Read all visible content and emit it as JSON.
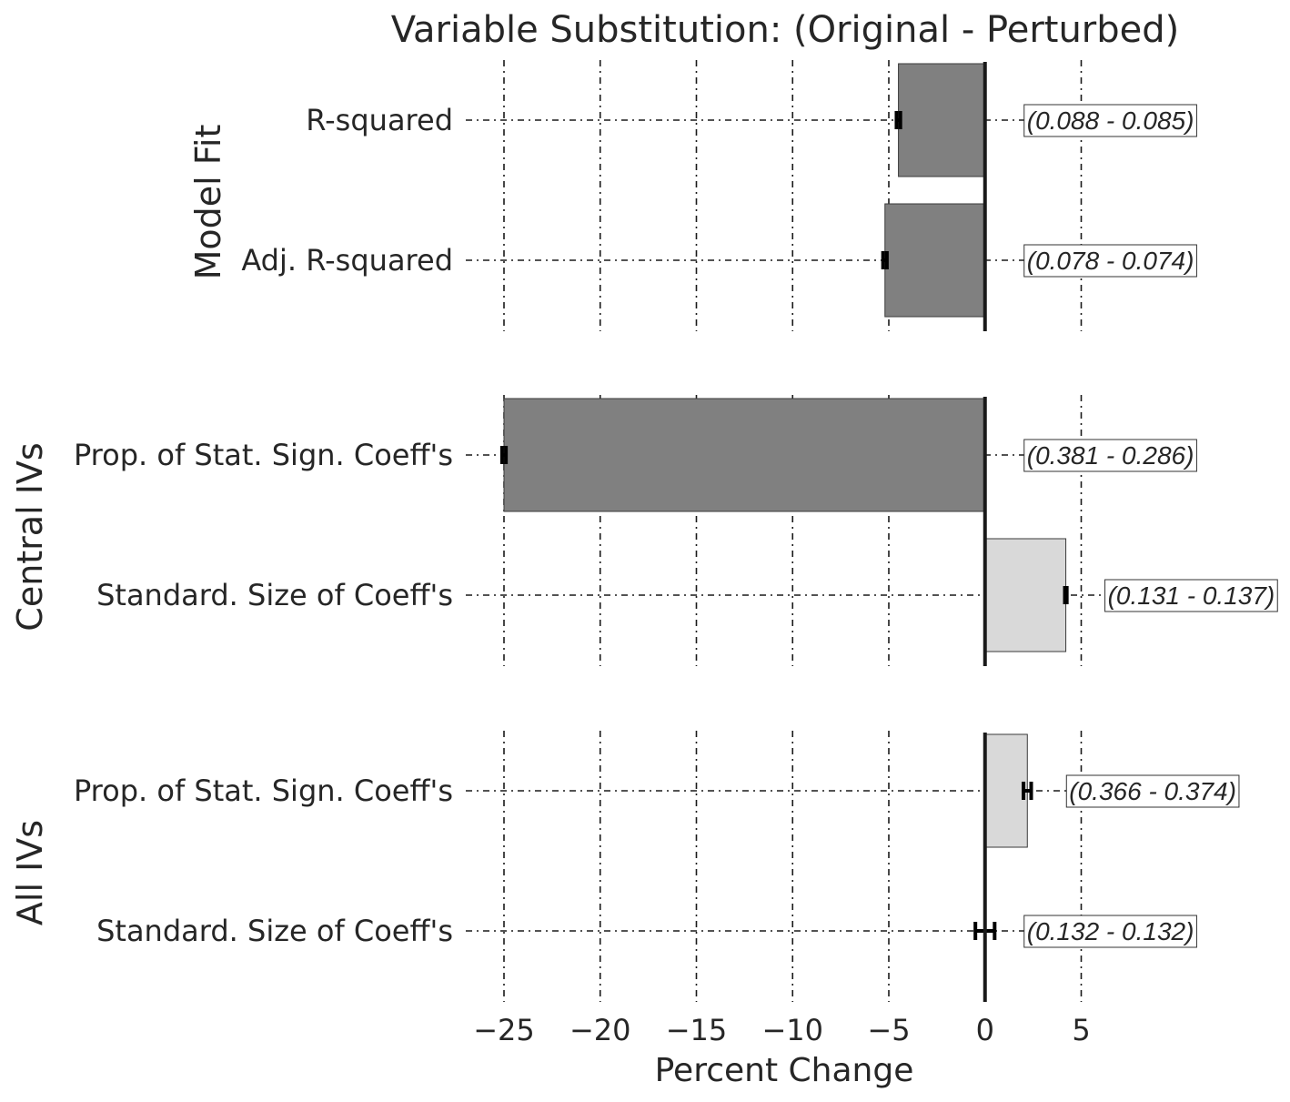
{
  "chart_data": {
    "type": "bar",
    "orientation": "horizontal",
    "title": "Variable Substitution: (Original - Perturbed)",
    "xlabel": "Percent Change",
    "xlim": [
      -27,
      6.5
    ],
    "xticks": [
      -25,
      -20,
      -15,
      -10,
      -5,
      0,
      5
    ],
    "xtick_labels": [
      "−25",
      "−20",
      "−15",
      "−10",
      "−5",
      "0",
      "5"
    ],
    "grid": true,
    "negative_color": "#808080",
    "positive_color": "#d9d9d9",
    "groups": [
      {
        "label": "Model Fit",
        "items": [
          {
            "label": "R-squared",
            "value": -4.5,
            "err": 0.1,
            "annotation": "(0.088 - 0.085)"
          },
          {
            "label": "Adj. R-squared",
            "value": -5.2,
            "err": 0.1,
            "annotation": "(0.078 - 0.074)"
          }
        ]
      },
      {
        "label": "Central IVs",
        "items": [
          {
            "label": "Prop. of Stat. Sign. Coeff's",
            "value": -25.0,
            "err": 0.1,
            "annotation": "(0.381 - 0.286)"
          },
          {
            "label": "Standard. Size of Coeff's",
            "value": 4.2,
            "err": 0.05,
            "annotation": "(0.131 - 0.137)"
          }
        ]
      },
      {
        "label": "All IVs",
        "items": [
          {
            "label": "Prop. of Stat. Sign. Coeff's",
            "value": 2.2,
            "err": 0.2,
            "annotation": "(0.366 - 0.374)"
          },
          {
            "label": "Standard. Size of Coeff's",
            "value": 0.0,
            "err": 0.5,
            "annotation": "(0.132 - 0.132)"
          }
        ]
      }
    ]
  }
}
